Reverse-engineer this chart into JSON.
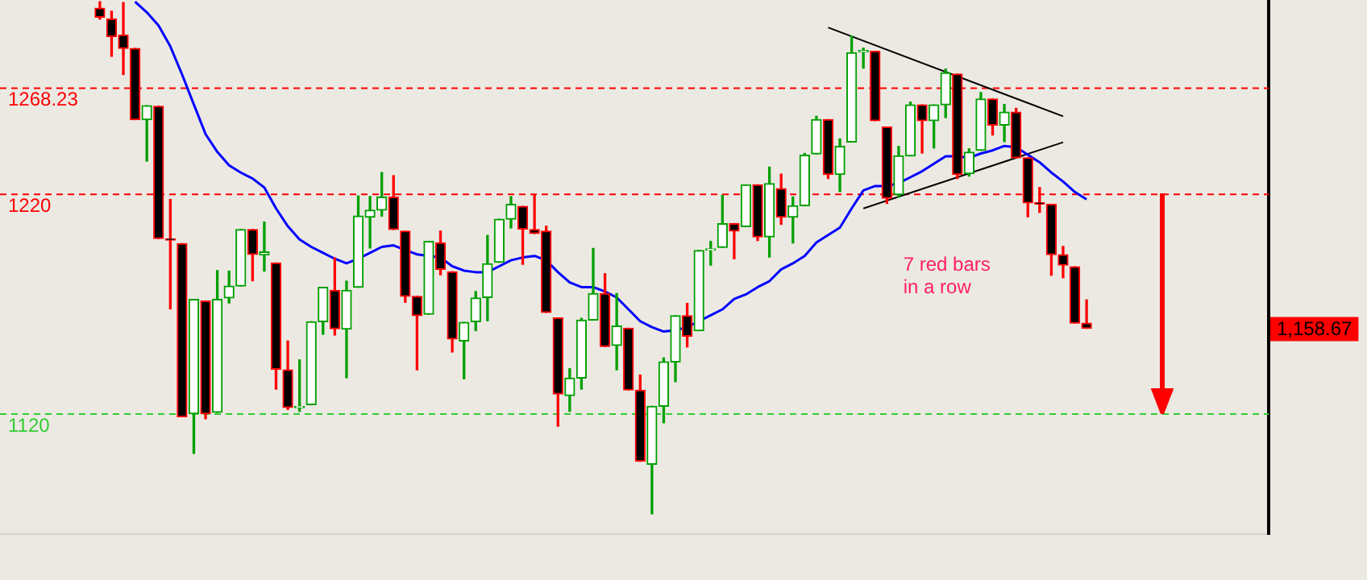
{
  "chart_data": {
    "type": "candlestick",
    "marker": "none",
    "ylim": [
      1065,
      1308
    ],
    "categories": [
      null,
      null,
      null,
      null,
      null,
      null,
      null,
      null,
      null,
      null,
      null,
      null,
      null,
      null,
      null,
      null,
      null,
      null,
      null,
      null,
      null,
      null,
      null,
      null,
      null,
      null,
      null,
      null,
      null,
      null,
      null,
      null,
      null,
      null,
      null,
      null,
      null,
      null,
      null,
      null,
      null,
      null,
      null,
      null,
      null,
      null,
      null,
      null,
      null,
      null,
      null,
      null,
      null,
      null,
      null,
      null,
      null,
      null,
      null,
      null,
      null,
      null,
      null,
      null,
      null,
      null,
      null,
      null,
      null,
      null,
      null,
      null,
      null,
      null,
      null,
      null,
      null,
      null,
      null,
      null,
      null,
      null,
      null,
      null,
      null,
      null,
      null,
      null,
      null,
      null,
      null,
      null,
      null,
      null,
      null,
      null,
      null,
      null,
      null,
      null,
      null,
      null,
      null,
      null,
      null,
      null,
      null,
      null
    ],
    "ohlc": [
      null,
      null,
      null,
      null,
      null,
      null,
      null,
      null,
      [
        1304.3,
        1307.2,
        1299.3,
        1300.2
      ],
      [
        1299.3,
        1302.9,
        1282.4,
        1291.4
      ],
      [
        1292.1,
        1306.8,
        1274.1,
        1286.0
      ],
      [
        1286.0,
        1286.0,
        1253.6,
        1253.6
      ],
      [
        1253.6,
        1259.9,
        1234.7,
        1259.9
      ],
      [
        1259.7,
        1259.7,
        1199.5,
        1199.5
      ],
      [
        1199.4,
        1217.3,
        1167.5,
        1198.8
      ],
      [
        1197.2,
        1197.2,
        1118.4,
        1118.4
      ],
      [
        1119.8,
        1171.8,
        1101.8,
        1171.8
      ],
      [
        1171.1,
        1171.1,
        1117.5,
        1119.8
      ],
      [
        1120.5,
        1184.9,
        1120.5,
        1171.8
      ],
      [
        1172.5,
        1184.7,
        1170.2,
        1177.9
      ],
      [
        1177.9,
        1203.6,
        1177.9,
        1203.6
      ],
      [
        1203.6,
        1203.6,
        1180.3,
        1192.3
      ],
      [
        1192.1,
        1207.0,
        1184.7,
        1193.4
      ],
      [
        1188.4,
        1188.4,
        1131.0,
        1140.1
      ],
      [
        1139.8,
        1152.9,
        1121.8,
        1122.7
      ],
      [
        1122.6,
        1144.3,
        1120.9,
        1123.2
      ],
      [
        1123.9,
        1161.7,
        1123.9,
        1161.7
      ],
      [
        1161.7,
        1177.3,
        1156.0,
        1177.3
      ],
      [
        1175.9,
        1190.7,
        1155.6,
        1158.5
      ],
      [
        1158.3,
        1180.1,
        1136.2,
        1175.9
      ],
      [
        1177.3,
        1218.9,
        1177.3,
        1209.7
      ],
      [
        1209.2,
        1218.6,
        1195.2,
        1212.4
      ],
      [
        1212.4,
        1229.5,
        1209.7,
        1218.4
      ],
      [
        1218.4,
        1228.1,
        1203.6,
        1203.6
      ],
      [
        1202.9,
        1202.9,
        1170.5,
        1173.2
      ],
      [
        1173.2,
        1173.2,
        1139.8,
        1164.4
      ],
      [
        1165.1,
        1198.2,
        1165.1,
        1198.2
      ],
      [
        1197.6,
        1202.9,
        1183.0,
        1185.5
      ],
      [
        1184.4,
        1184.4,
        1147.9,
        1153.8
      ],
      [
        1152.9,
        1161.4,
        1135.7,
        1161.4
      ],
      [
        1161.7,
        1175.4,
        1157.6,
        1172.5
      ],
      [
        1172.7,
        1200.9,
        1162.1,
        1188.0
      ],
      [
        1188.7,
        1208.3,
        1188.7,
        1208.3
      ],
      [
        1208.3,
        1218.6,
        1204.3,
        1215.1
      ],
      [
        1214.1,
        1214.1,
        1187.8,
        1203.8
      ],
      [
        1203.6,
        1219.5,
        1201.8,
        1201.8
      ],
      [
        1202.9,
        1205.1,
        1165.9,
        1165.9
      ],
      [
        1163.4,
        1163.4,
        1114.1,
        1128.8
      ],
      [
        1128.1,
        1140.3,
        1120.9,
        1136.0
      ],
      [
        1136.0,
        1163.2,
        1131.0,
        1162.4
      ],
      [
        1162.4,
        1195.0,
        1162.4,
        1174.5
      ],
      [
        1174.5,
        1183.5,
        1150.4,
        1150.4
      ],
      [
        1150.9,
        1174.5,
        1139.8,
        1159.7
      ],
      [
        1158.7,
        1158.7,
        1130.6,
        1130.6
      ],
      [
        1130.5,
        1137.4,
        1098.2,
        1098.2
      ],
      [
        1096.8,
        1123.2,
        1074.3,
        1123.2
      ],
      [
        1123.2,
        1145.2,
        1115.7,
        1143.4
      ],
      [
        1143.4,
        1164.4,
        1134.4,
        1164.4
      ],
      [
        1164.4,
        1170.0,
        1150.2,
        1155.1
      ],
      [
        1157.6,
        1194.1,
        1157.6,
        1194.1
      ],
      [
        1194.2,
        1198.2,
        1187.4,
        1194.8
      ],
      [
        1195.5,
        1219.1,
        1195.5,
        1206.3
      ],
      [
        1206.3,
        1206.3,
        1190.3,
        1202.9
      ],
      [
        1204.9,
        1223.9,
        1204.9,
        1223.9
      ],
      [
        1223.9,
        1223.9,
        1198.6,
        1200.2
      ],
      [
        1200.2,
        1232.0,
        1191.1,
        1224.5
      ],
      [
        1222.2,
        1228.8,
        1206.0,
        1209.2
      ],
      [
        1209.2,
        1218.4,
        1197.5,
        1214.4
      ],
      [
        1214.4,
        1238.2,
        1214.4,
        1237.4
      ],
      [
        1238.0,
        1255.1,
        1238.0,
        1253.6
      ],
      [
        1253.6,
        1253.6,
        1226.8,
        1228.6
      ],
      [
        1228.6,
        1244.8,
        1220.9,
        1241.4
      ],
      [
        1243.4,
        1291.6,
        1243.4,
        1284.0
      ],
      [
        1284.4,
        1286.1,
        1277.0,
        1285.0
      ],
      [
        1284.7,
        1284.7,
        1253.1,
        1253.1
      ],
      [
        1250.2,
        1250.2,
        1215.5,
        1217.8
      ],
      [
        1219.5,
        1241.4,
        1218.4,
        1237.1
      ],
      [
        1237.1,
        1261.6,
        1237.1,
        1260.3
      ],
      [
        1260.3,
        1260.3,
        1238.4,
        1253.1
      ],
      [
        1253.1,
        1260.3,
        1240.7,
        1260.3
      ],
      [
        1260.3,
        1276.6,
        1254.5,
        1274.9
      ],
      [
        1274.3,
        1274.3,
        1226.8,
        1228.6
      ],
      [
        1229.0,
        1240.3,
        1227.9,
        1238.8
      ],
      [
        1239.6,
        1265.9,
        1239.6,
        1263.0
      ],
      [
        1263.0,
        1263.0,
        1246.6,
        1251.1
      ],
      [
        1251.1,
        1260.5,
        1243.6,
        1257.0
      ],
      [
        1257.0,
        1258.7,
        1236.2,
        1236.2
      ],
      [
        1236.2,
        1236.2,
        1209.4,
        1215.7
      ],
      [
        1215.8,
        1222.7,
        1211.4,
        1215.2
      ],
      [
        1215.1,
        1215.1,
        1182.8,
        1192.2
      ],
      [
        1192.2,
        1195.9,
        1181.7,
        1187.4
      ],
      [
        1186.7,
        1186.7,
        1161.0,
        1161.0
      ],
      [
        1161.0,
        1171.6,
        1158.67,
        1158.67
      ],
      null,
      null,
      null,
      null,
      null,
      null,
      null,
      null,
      null,
      null,
      null,
      null,
      null,
      null,
      null
    ],
    "series": [
      {
        "type": "line",
        "color": "#0000ff",
        "values": [
          null,
          null,
          null,
          null,
          null,
          null,
          null,
          null,
          null,
          null,
          null,
          1307.2,
          1302.4,
          1296.4,
          1286.9,
          1274.1,
          1260.5,
          1247.0,
          1238.9,
          1232.8,
          1229.5,
          1226.8,
          1222.7,
          1213.2,
          1205.1,
          1199.1,
          1195.7,
          1193.0,
          1190.3,
          1188.2,
          1190.3,
          1193.0,
          1195.7,
          1196.4,
          1194.3,
          1192.3,
          1191.6,
          1190.9,
          1186.9,
          1184.9,
          1184.2,
          1184.2,
          1186.9,
          1189.6,
          1190.9,
          1191.6,
          1189.6,
          1184.2,
          1179.5,
          1177.4,
          1177.4,
          1175.4,
          1172.7,
          1167.3,
          1161.9,
          1159.2,
          1157.2,
          1157.8,
          1159.2,
          1161.9,
          1164.6,
          1167.3,
          1172.0,
          1174.1,
          1177.4,
          1180.1,
          1185.5,
          1188.2,
          1191.6,
          1197.7,
          1201.1,
          1204.5,
          1213.2,
          1221.4,
          1223.4,
          1223.4,
          1224.7,
          1227.4,
          1230.1,
          1233.5,
          1236.9,
          1236.9,
          1236.2,
          1238.2,
          1239.6,
          1241.6,
          1241.0,
          1237.6,
          1234.2,
          1229.5,
          1225.4,
          1220.7,
          1217.3,
          null,
          null,
          null,
          null,
          null,
          null,
          null,
          null,
          null,
          null,
          null,
          null,
          null,
          null,
          null
        ]
      },
      {
        "type": "line",
        "color": "#000000",
        "values": [
          null,
          null,
          null,
          null,
          null,
          null,
          null,
          null,
          null,
          null,
          null,
          null,
          null,
          null,
          null,
          null,
          null,
          null,
          null,
          null,
          null,
          null,
          null,
          null,
          null,
          null,
          null,
          null,
          null,
          null,
          null,
          null,
          null,
          null,
          null,
          null,
          null,
          null,
          null,
          null,
          null,
          null,
          null,
          null,
          null,
          null,
          null,
          null,
          null,
          null,
          null,
          null,
          null,
          null,
          null,
          null,
          null,
          null,
          null,
          null,
          null,
          null,
          null,
          null,
          null,
          null,
          null,
          null,
          null,
          null,
          1295.5,
          null,
          null,
          null,
          null,
          null,
          null,
          null,
          null,
          null,
          null,
          null,
          null,
          null,
          null,
          null,
          null,
          null,
          null,
          null,
          1255.1,
          null,
          null,
          null,
          null,
          null,
          null,
          null,
          null,
          null,
          null,
          null,
          null,
          null,
          null,
          null,
          null,
          null
        ]
      },
      {
        "type": "line",
        "color": "#000000",
        "values": [
          null,
          null,
          null,
          null,
          null,
          null,
          null,
          null,
          null,
          null,
          null,
          null,
          null,
          null,
          null,
          null,
          null,
          null,
          null,
          null,
          null,
          null,
          null,
          null,
          null,
          null,
          null,
          null,
          null,
          null,
          null,
          null,
          null,
          null,
          null,
          null,
          null,
          null,
          null,
          null,
          null,
          null,
          null,
          null,
          null,
          null,
          null,
          null,
          null,
          null,
          null,
          null,
          null,
          null,
          null,
          null,
          null,
          null,
          null,
          null,
          null,
          null,
          null,
          null,
          null,
          null,
          null,
          null,
          null,
          null,
          null,
          null,
          null,
          1213.2,
          null,
          null,
          null,
          null,
          null,
          null,
          null,
          null,
          null,
          null,
          null,
          null,
          null,
          null,
          null,
          null,
          1243.3,
          null,
          null,
          null,
          null,
          null,
          null,
          null,
          null,
          null,
          null,
          null,
          null,
          null,
          null,
          null,
          null,
          null
        ]
      }
    ],
    "ref_lines": [
      {
        "axis": "y",
        "value": 1268.23,
        "label": "1268.23",
        "color": "#ff0000",
        "line_style": "dashed"
      },
      {
        "axis": "y",
        "value": 1220,
        "label": "1220",
        "color": "#ff0000",
        "line_style": "dashed"
      },
      {
        "axis": "y",
        "value": 1120,
        "label": "1120",
        "color": "#33cc33",
        "line_style": "dashed"
      }
    ],
    "annotations": [
      "7 red bars in a row",
      "1,158.67"
    ]
  }
}
